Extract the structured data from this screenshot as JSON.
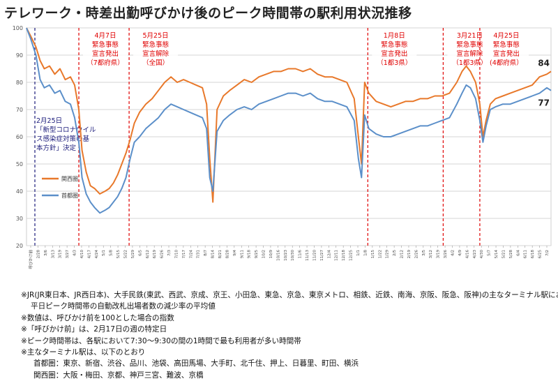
{
  "title": "テレワーク・時差出勤呼びかけ後のピーク時間帯の駅利用状況推移",
  "chart_data": {
    "type": "line",
    "ylim": [
      20,
      100
    ],
    "yticks": [
      20,
      30,
      40,
      50,
      60,
      70,
      80,
      90,
      100
    ],
    "grid": true,
    "x_range": [
      "2020-02-17",
      "2021-07-02"
    ],
    "xtick_labels": [
      "呼びかけ前",
      "2/28",
      "3/6",
      "3/13",
      "3/19",
      "3/27",
      "4/3",
      "4/10",
      "4/17",
      "4/24",
      "5/1",
      "5/8",
      "5/15",
      "5/22",
      "5/29",
      "6/5",
      "6/12",
      "6/19",
      "6/26",
      "7/3",
      "7/10",
      "7/17",
      "7/24",
      "7/31",
      "8/7",
      "8/14",
      "8/21",
      "8/28",
      "9/4",
      "9/11",
      "9/18",
      "9/25",
      "10/2",
      "10/9",
      "10/16",
      "10/23",
      "10/30",
      "11/6",
      "11/13",
      "11/20",
      "11/27",
      "12/4",
      "12/11",
      "12/18",
      "12/25",
      "1/1",
      "1/8",
      "1/15",
      "1/22",
      "1/29",
      "2/5",
      "2/12",
      "2/19",
      "2/26",
      "3/5",
      "3/12",
      "3/19",
      "3/26",
      "4/2",
      "4/9",
      "4/16",
      "4/23",
      "4/30",
      "5/7",
      "5/14",
      "5/21",
      "5/28",
      "6/4",
      "6/11",
      "6/18",
      "6/25",
      "7/2"
    ],
    "legend": {
      "placement": "left-middle"
    },
    "series": [
      {
        "name": "関西圏",
        "color": "#e8782a",
        "points": [
          [
            "2020-02-17",
            100
          ],
          [
            "2020-02-21",
            97
          ],
          [
            "2020-02-26",
            93
          ],
          [
            "2020-03-01",
            88
          ],
          [
            "2020-03-05",
            85
          ],
          [
            "2020-03-10",
            86
          ],
          [
            "2020-03-15",
            83
          ],
          [
            "2020-03-20",
            85
          ],
          [
            "2020-03-25",
            81
          ],
          [
            "2020-03-30",
            82
          ],
          [
            "2020-04-03",
            79
          ],
          [
            "2020-04-07",
            70
          ],
          [
            "2020-04-10",
            55
          ],
          [
            "2020-04-14",
            47
          ],
          [
            "2020-04-18",
            42
          ],
          [
            "2020-04-22",
            41
          ],
          [
            "2020-04-27",
            39
          ],
          [
            "2020-05-02",
            40
          ],
          [
            "2020-05-06",
            41
          ],
          [
            "2020-05-10",
            43
          ],
          [
            "2020-05-14",
            46
          ],
          [
            "2020-05-18",
            50
          ],
          [
            "2020-05-22",
            54
          ],
          [
            "2020-05-26",
            59
          ],
          [
            "2020-05-30",
            65
          ],
          [
            "2020-06-04",
            69
          ],
          [
            "2020-06-10",
            72
          ],
          [
            "2020-06-16",
            74
          ],
          [
            "2020-06-22",
            77
          ],
          [
            "2020-06-28",
            80
          ],
          [
            "2020-07-04",
            82
          ],
          [
            "2020-07-10",
            80
          ],
          [
            "2020-07-16",
            81
          ],
          [
            "2020-07-22",
            80
          ],
          [
            "2020-07-28",
            79
          ],
          [
            "2020-08-03",
            78
          ],
          [
            "2020-08-07",
            72
          ],
          [
            "2020-08-10",
            52
          ],
          [
            "2020-08-13",
            36
          ],
          [
            "2020-08-17",
            70
          ],
          [
            "2020-08-23",
            75
          ],
          [
            "2020-08-29",
            77
          ],
          [
            "2020-09-05",
            79
          ],
          [
            "2020-09-12",
            81
          ],
          [
            "2020-09-19",
            80
          ],
          [
            "2020-09-26",
            82
          ],
          [
            "2020-10-03",
            83
          ],
          [
            "2020-10-10",
            84
          ],
          [
            "2020-10-17",
            84
          ],
          [
            "2020-10-24",
            85
          ],
          [
            "2020-10-31",
            85
          ],
          [
            "2020-11-07",
            84
          ],
          [
            "2020-11-14",
            85
          ],
          [
            "2020-11-21",
            83
          ],
          [
            "2020-11-28",
            82
          ],
          [
            "2020-12-05",
            82
          ],
          [
            "2020-12-12",
            81
          ],
          [
            "2020-12-19",
            80
          ],
          [
            "2020-12-26",
            74
          ],
          [
            "2020-12-30",
            60
          ],
          [
            "2021-01-02",
            50
          ],
          [
            "2021-01-05",
            80
          ],
          [
            "2021-01-09",
            76
          ],
          [
            "2021-01-16",
            73
          ],
          [
            "2021-01-23",
            72
          ],
          [
            "2021-01-30",
            71
          ],
          [
            "2021-02-06",
            72
          ],
          [
            "2021-02-13",
            73
          ],
          [
            "2021-02-20",
            73
          ],
          [
            "2021-02-27",
            74
          ],
          [
            "2021-03-06",
            74
          ],
          [
            "2021-03-13",
            75
          ],
          [
            "2021-03-20",
            75
          ],
          [
            "2021-03-27",
            76
          ],
          [
            "2021-04-03",
            80
          ],
          [
            "2021-04-08",
            84
          ],
          [
            "2021-04-12",
            86
          ],
          [
            "2021-04-16",
            84
          ],
          [
            "2021-04-21",
            80
          ],
          [
            "2021-04-25",
            72
          ],
          [
            "2021-04-28",
            60
          ],
          [
            "2021-05-01",
            66
          ],
          [
            "2021-05-05",
            72
          ],
          [
            "2021-05-10",
            74
          ],
          [
            "2021-05-17",
            75
          ],
          [
            "2021-05-24",
            76
          ],
          [
            "2021-05-31",
            77
          ],
          [
            "2021-06-07",
            78
          ],
          [
            "2021-06-14",
            79
          ],
          [
            "2021-06-21",
            82
          ],
          [
            "2021-06-28",
            83
          ],
          [
            "2021-07-02",
            84
          ]
        ]
      },
      {
        "name": "首都圏",
        "color": "#5b8fc9",
        "points": [
          [
            "2020-02-17",
            100
          ],
          [
            "2020-02-21",
            96
          ],
          [
            "2020-02-26",
            90
          ],
          [
            "2020-03-01",
            81
          ],
          [
            "2020-03-05",
            78
          ],
          [
            "2020-03-10",
            79
          ],
          [
            "2020-03-15",
            76
          ],
          [
            "2020-03-20",
            77
          ],
          [
            "2020-03-25",
            73
          ],
          [
            "2020-03-30",
            72
          ],
          [
            "2020-04-03",
            67
          ],
          [
            "2020-04-07",
            58
          ],
          [
            "2020-04-10",
            45
          ],
          [
            "2020-04-14",
            39
          ],
          [
            "2020-04-18",
            36
          ],
          [
            "2020-04-22",
            34
          ],
          [
            "2020-04-27",
            32
          ],
          [
            "2020-05-02",
            33
          ],
          [
            "2020-05-06",
            34
          ],
          [
            "2020-05-10",
            36
          ],
          [
            "2020-05-14",
            38
          ],
          [
            "2020-05-18",
            41
          ],
          [
            "2020-05-22",
            45
          ],
          [
            "2020-05-26",
            52
          ],
          [
            "2020-05-30",
            58
          ],
          [
            "2020-06-04",
            60
          ],
          [
            "2020-06-10",
            63
          ],
          [
            "2020-06-16",
            65
          ],
          [
            "2020-06-22",
            67
          ],
          [
            "2020-06-28",
            70
          ],
          [
            "2020-07-04",
            72
          ],
          [
            "2020-07-10",
            71
          ],
          [
            "2020-07-16",
            70
          ],
          [
            "2020-07-22",
            69
          ],
          [
            "2020-07-28",
            68
          ],
          [
            "2020-08-03",
            67
          ],
          [
            "2020-08-07",
            63
          ],
          [
            "2020-08-10",
            45
          ],
          [
            "2020-08-13",
            40
          ],
          [
            "2020-08-17",
            62
          ],
          [
            "2020-08-23",
            66
          ],
          [
            "2020-08-29",
            68
          ],
          [
            "2020-09-05",
            70
          ],
          [
            "2020-09-12",
            71
          ],
          [
            "2020-09-19",
            70
          ],
          [
            "2020-09-26",
            72
          ],
          [
            "2020-10-03",
            73
          ],
          [
            "2020-10-10",
            74
          ],
          [
            "2020-10-17",
            75
          ],
          [
            "2020-10-24",
            76
          ],
          [
            "2020-10-31",
            76
          ],
          [
            "2020-11-07",
            75
          ],
          [
            "2020-11-14",
            76
          ],
          [
            "2020-11-21",
            74
          ],
          [
            "2020-11-28",
            73
          ],
          [
            "2020-12-05",
            73
          ],
          [
            "2020-12-12",
            72
          ],
          [
            "2020-12-19",
            71
          ],
          [
            "2020-12-26",
            66
          ],
          [
            "2020-12-30",
            52
          ],
          [
            "2021-01-02",
            45
          ],
          [
            "2021-01-05",
            68
          ],
          [
            "2021-01-09",
            63
          ],
          [
            "2021-01-16",
            61
          ],
          [
            "2021-01-23",
            60
          ],
          [
            "2021-01-30",
            60
          ],
          [
            "2021-02-06",
            61
          ],
          [
            "2021-02-13",
            62
          ],
          [
            "2021-02-20",
            63
          ],
          [
            "2021-02-27",
            64
          ],
          [
            "2021-03-06",
            64
          ],
          [
            "2021-03-13",
            65
          ],
          [
            "2021-03-20",
            66
          ],
          [
            "2021-03-27",
            67
          ],
          [
            "2021-04-03",
            72
          ],
          [
            "2021-04-08",
            76
          ],
          [
            "2021-04-12",
            79
          ],
          [
            "2021-04-16",
            78
          ],
          [
            "2021-04-21",
            74
          ],
          [
            "2021-04-25",
            66
          ],
          [
            "2021-04-28",
            58
          ],
          [
            "2021-05-01",
            64
          ],
          [
            "2021-05-05",
            70
          ],
          [
            "2021-05-10",
            71
          ],
          [
            "2021-05-17",
            72
          ],
          [
            "2021-05-24",
            72
          ],
          [
            "2021-05-31",
            73
          ],
          [
            "2021-06-07",
            74
          ],
          [
            "2021-06-14",
            75
          ],
          [
            "2021-06-21",
            76
          ],
          [
            "2021-06-28",
            78
          ],
          [
            "2021-07-02",
            77
          ]
        ]
      }
    ],
    "end_labels": {
      "kansai": "84",
      "shuto": "77"
    },
    "events": [
      {
        "date": "2020-02-25",
        "color": "#1a1a7a",
        "lines": [
          "2月25日",
          "「新型コロナウイル",
          "ス感染症対策の基",
          "本方針」決定"
        ]
      },
      {
        "date": "2020-04-07",
        "color": "#e00000",
        "lines": [
          "4月7日",
          "緊急事態",
          "宣言発出",
          "（7都府県）"
        ]
      },
      {
        "date": "2020-05-25",
        "color": "#e00000",
        "lines": [
          "5月25日",
          "緊急事態",
          "宣言解除",
          "（全国）"
        ]
      },
      {
        "date": "2021-01-08",
        "color": "#e00000",
        "lines": [
          "1月8日",
          "緊急事態",
          "宣言発出",
          "（1都3県）"
        ]
      },
      {
        "date": "2021-03-21",
        "color": "#e00000",
        "lines": [
          "3月21日",
          "緊急事態",
          "宣言解除",
          "（1都3県）"
        ]
      },
      {
        "date": "2021-04-25",
        "color": "#e00000",
        "lines": [
          "4月25日",
          "緊急事態",
          "宣言発出",
          "(4都府県）"
        ]
      }
    ]
  },
  "notes": {
    "n1a": "※JR(JR東日本、JR西日本)、大手民鉄(東武、西武、京成、京王、小田急、東急、京急、東京メトロ、相鉄、近鉄、南海、京阪、阪急、阪神)の主なターミナル駅における",
    "n1b": "平日ピーク時間帯の自動改札出場者数の減少率の平均値",
    "n2": "※数値は、呼びかけ前を100とした場合の指数",
    "n3": "※「呼びかけ前」は、2月17日の週の特定日",
    "n4": "※ピーク時間帯は、各駅において7:30～9:30の間の1時間で最も利用者が多い時間帯",
    "n5": "※主なターミナル駅は、以下のとおり",
    "n6": "首都圏：東京、新宿、渋谷、品川、池袋、高田馬場、大手町、北千住、押上、日暮里、町田、横浜",
    "n7": "関西圏：大阪・梅田、京都、神戸三宮、難波、京橋"
  }
}
